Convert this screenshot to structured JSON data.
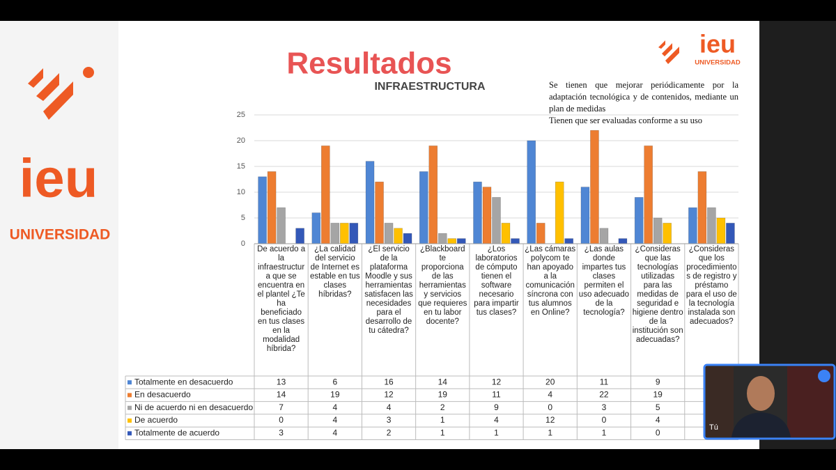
{
  "slide": {
    "heading": "Resultados",
    "logo": "ieu",
    "logo_sub": "UNIVERSIDAD",
    "note": [
      "Se tienen que mejorar periódicamente por la adaptación tecnológica y de contenidos, mediante un plan de medidas",
      "Tienen que ser evaluadas conforme a su uso"
    ]
  },
  "video": {
    "label": "Tú"
  },
  "chart_data": {
    "type": "bar",
    "title": "INFRAESTRUCTURA",
    "categories": [
      "De acuerdo a la infraestructura que se encuentra en el plantel ¿Te ha beneficiado en tus clases en la modalidad híbrida?",
      "¿La calidad del servicio de Internet es estable en tus clases híbridas?",
      "¿El servicio de la plataforma Moodle y sus herramientas satisfacen las necesidades para el desarrollo de tu cátedra?",
      "¿Blackboard te proporciona de las herramientas y servicios que requieres en tu labor docente?",
      "¿Los laboratorios de cómputo tienen el software necesario para impartir tus clases?",
      "¿Las cámaras polycom te han apoyado a la comunicación síncrona con tus alumnos en Online?",
      "¿Las aulas donde impartes tus clases permiten el uso adecuado de la tecnología?",
      "¿Consideras que las tecnologías utilizadas para las medidas de seguridad e higiene dentro de la institución son adecuadas?",
      "¿Consideras que los procedimientos de registro y préstamo para el uso de la tecnología instalada son adecuados?"
    ],
    "series": [
      {
        "name": "Totalmente en desacuerdo",
        "color": "#4f86d4",
        "values": [
          13,
          6,
          16,
          14,
          12,
          20,
          11,
          9,
          7
        ]
      },
      {
        "name": "En desacuerdo",
        "color": "#ed7d31",
        "values": [
          14,
          19,
          12,
          19,
          11,
          4,
          22,
          19,
          14
        ]
      },
      {
        "name": "Ni de acuerdo ni en desacuerdo",
        "color": "#a5a5a5",
        "values": [
          7,
          4,
          4,
          2,
          9,
          0,
          3,
          5,
          7
        ]
      },
      {
        "name": "De acuerdo",
        "color": "#ffc000",
        "values": [
          0,
          4,
          3,
          1,
          4,
          12,
          0,
          4,
          5
        ]
      },
      {
        "name": "Totalmente de acuerdo",
        "color": "#3358b8",
        "values": [
          3,
          4,
          2,
          1,
          1,
          1,
          1,
          0,
          4
        ]
      }
    ],
    "ylim": [
      0,
      25
    ],
    "yticks": [
      0,
      5,
      10,
      15,
      20,
      25
    ],
    "grid": true
  }
}
